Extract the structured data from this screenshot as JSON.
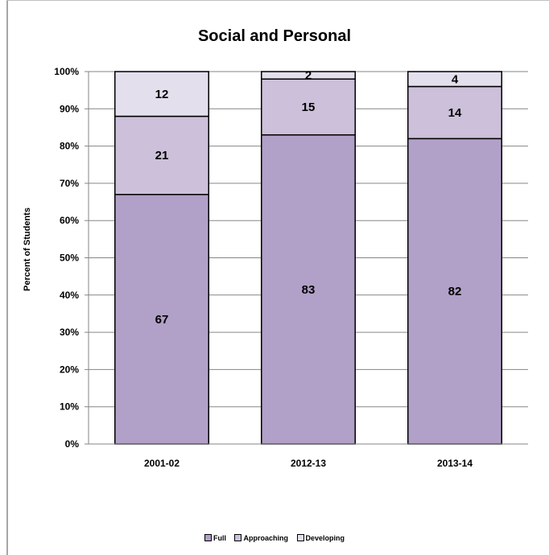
{
  "chart_data": {
    "type": "bar",
    "stacked": true,
    "title": "Social and Personal",
    "xlabel": "",
    "ylabel": "Percent of Students",
    "ylim": [
      0,
      100
    ],
    "yticks": [
      "0%",
      "10%",
      "20%",
      "30%",
      "40%",
      "50%",
      "60%",
      "70%",
      "80%",
      "90%",
      "100%"
    ],
    "categories": [
      "2001-02",
      "2012-13",
      "2013-14"
    ],
    "series": [
      {
        "name": "Full",
        "values": [
          67,
          83,
          82
        ],
        "color": "#b1a0c7"
      },
      {
        "name": "Approaching",
        "values": [
          21,
          15,
          14
        ],
        "color": "#ccc0da"
      },
      {
        "name": "Developing",
        "values": [
          12,
          2,
          4
        ],
        "color": "#e4dfec"
      }
    ],
    "grid": true,
    "legend_position": "bottom"
  }
}
